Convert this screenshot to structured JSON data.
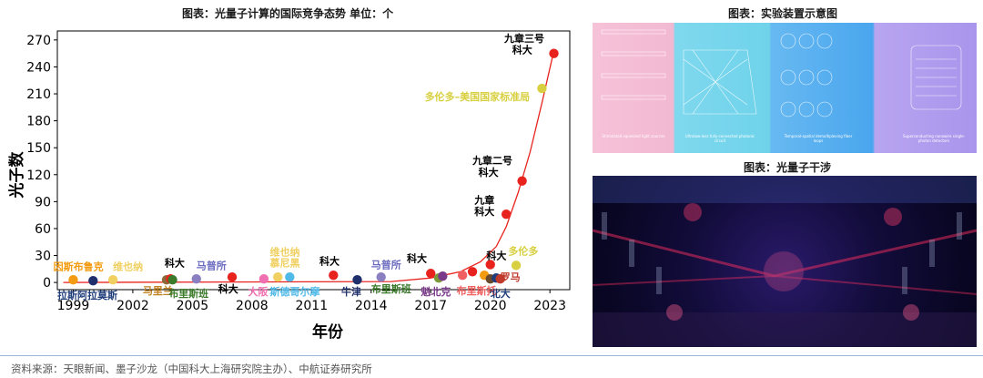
{
  "left_title": "图表：光量子计算的国际竞争态势 单位：个",
  "right_title_top": "图表：实验装置示意图",
  "right_title_bottom": "图表：光量子干涉",
  "footer": "资料来源：天眼新闻、墨子沙龙（中国科大上海研究院主办）、中航证券研究所",
  "diagram_labels": [
    "Stimulated squeezed light sources",
    "Ultralow-loss fully-connected photonic circuit",
    "Temporal-spatial demultiplexing fiber loops",
    "Superconducting nanowire single-photon detectors"
  ],
  "colors": {
    "axis": "#000000",
    "curve": "#e8231e",
    "accent_blue": "#1f3d7a"
  },
  "chart_data": {
    "type": "scatter",
    "title": "光量子计算的国际竞争态势",
    "xlabel": "年份",
    "ylabel": "光子数",
    "xlim": [
      1998.2,
      2024.0
    ],
    "ylim": [
      -8,
      280
    ],
    "xticks": [
      1999,
      2002,
      2005,
      2008,
      2011,
      2014,
      2017,
      2020,
      2023
    ],
    "yticks": [
      0,
      30,
      60,
      90,
      120,
      150,
      180,
      210,
      240,
      270
    ],
    "curve": {
      "x": [
        1998.5,
        2015,
        2017,
        2018.5,
        2019.5,
        2020.3,
        2020.8,
        2021.4,
        2022.0,
        2022.6,
        2023.2
      ],
      "y": [
        0,
        1,
        5,
        12,
        23,
        40,
        62,
        100,
        145,
        200,
        258
      ]
    },
    "points": [
      {
        "x": 1999.0,
        "y": 3,
        "color": "#f39c12"
      },
      {
        "x": 2000.0,
        "y": 2,
        "color": "#1f2f6b"
      },
      {
        "x": 2001.0,
        "y": 3,
        "color": "#f0d060"
      },
      {
        "x": 2003.7,
        "y": 3,
        "color": "#8a6a3a"
      },
      {
        "x": 2003.9,
        "y": 4,
        "color": "#e8231e"
      },
      {
        "x": 2004.0,
        "y": 3,
        "color": "#3a7a2a"
      },
      {
        "x": 2005.2,
        "y": 4,
        "color": "#8a7fc0"
      },
      {
        "x": 2007.0,
        "y": 6,
        "color": "#e8231e"
      },
      {
        "x": 2008.6,
        "y": 4,
        "color": "#f06fb0"
      },
      {
        "x": 2009.3,
        "y": 6,
        "color": "#f0d060"
      },
      {
        "x": 2009.9,
        "y": 6,
        "color": "#4fb9e8"
      },
      {
        "x": 2012.1,
        "y": 8,
        "color": "#e8231e"
      },
      {
        "x": 2013.3,
        "y": 3,
        "color": "#1f2f6b"
      },
      {
        "x": 2014.5,
        "y": 6,
        "color": "#8a7fc0"
      },
      {
        "x": 2017.0,
        "y": 10,
        "color": "#e8231e"
      },
      {
        "x": 2017.4,
        "y": 5,
        "color": "#7a9a3a"
      },
      {
        "x": 2017.6,
        "y": 7,
        "color": "#7a3a8a"
      },
      {
        "x": 2018.6,
        "y": 8,
        "color": "#f06060"
      },
      {
        "x": 2019.1,
        "y": 12,
        "color": "#e8231e"
      },
      {
        "x": 2019.7,
        "y": 8,
        "color": "#f39c12"
      },
      {
        "x": 2020.0,
        "y": 20,
        "color": "#e8231e"
      },
      {
        "x": 2020.0,
        "y": 4,
        "color": "#6a4a2a"
      },
      {
        "x": 2020.3,
        "y": 5,
        "color": "#1f3d7a"
      },
      {
        "x": 2020.5,
        "y": 4,
        "color": "#c0392b"
      },
      {
        "x": 2021.3,
        "y": 19,
        "color": "#d8d040"
      },
      {
        "x": 2020.8,
        "y": 76,
        "color": "#e8231e"
      },
      {
        "x": 2021.6,
        "y": 113,
        "color": "#e8231e"
      },
      {
        "x": 2022.6,
        "y": 216,
        "color": "#d8d040"
      },
      {
        "x": 2023.2,
        "y": 255,
        "color": "#e8231e"
      }
    ],
    "annotations": [
      {
        "text": "因斯布鲁克",
        "x": 1998.0,
        "y": 14,
        "color": "#f39c12"
      },
      {
        "text": "维也纳",
        "x": 2001.0,
        "y": 14,
        "color": "#f0d060"
      },
      {
        "text": "拉斯阿拉莫斯",
        "x": 1998.2,
        "y": -18,
        "color": "#1f3d7a"
      },
      {
        "text": "科大",
        "x": 2003.6,
        "y": 18,
        "color": "#000000"
      },
      {
        "text": "马里兰",
        "x": 2002.5,
        "y": -13,
        "color": "#c08020"
      },
      {
        "text": "布里斯班",
        "x": 2003.8,
        "y": -16,
        "color": "#3a7a2a"
      },
      {
        "text": "马普所",
        "x": 2005.2,
        "y": 15,
        "color": "#6a6ac0"
      },
      {
        "text": "科大",
        "x": 2006.3,
        "y": -11,
        "color": "#000000"
      },
      {
        "text": "大阪",
        "x": 2007.8,
        "y": -14,
        "color": "#f06fb0"
      },
      {
        "text": "维也纳",
        "x": 2008.9,
        "y": 30,
        "color": "#f0d060"
      },
      {
        "text": "慕尼黑",
        "x": 2008.9,
        "y": 18,
        "color": "#f0d060"
      },
      {
        "text": "斯德哥尔摩",
        "x": 2008.9,
        "y": -14,
        "color": "#4fb9e8"
      },
      {
        "text": "科大",
        "x": 2011.4,
        "y": 20,
        "color": "#000000"
      },
      {
        "text": "牛津",
        "x": 2012.5,
        "y": -14,
        "color": "#1f2f6b"
      },
      {
        "text": "马普所",
        "x": 2014.0,
        "y": 16,
        "color": "#6a6ac0"
      },
      {
        "text": "科大",
        "x": 2015.8,
        "y": 23,
        "color": "#000000"
      },
      {
        "text": "布里斯班",
        "x": 2014.0,
        "y": -11,
        "color": "#3a7a2a"
      },
      {
        "text": "魁北克",
        "x": 2016.5,
        "y": -14,
        "color": "#7a3a8a"
      },
      {
        "text": "布里斯托",
        "x": 2018.3,
        "y": -13,
        "color": "#f06060"
      },
      {
        "text": "科大",
        "x": 2019.8,
        "y": 26,
        "color": "#000000"
      },
      {
        "text": "多伦多",
        "x": 2020.9,
        "y": 31,
        "color": "#d8d040"
      },
      {
        "text": "罗马",
        "x": 2020.5,
        "y": 2,
        "color": "#c0392b"
      },
      {
        "text": "北大",
        "x": 2020.0,
        "y": -16,
        "color": "#1f3d7a"
      },
      {
        "text": "九章",
        "x": 2019.2,
        "y": 88,
        "color": "#000000"
      },
      {
        "text": "科大",
        "x": 2019.2,
        "y": 75,
        "color": "#000000"
      },
      {
        "text": "九章二号",
        "x": 2019.1,
        "y": 132,
        "color": "#000000"
      },
      {
        "text": "科大",
        "x": 2019.4,
        "y": 119,
        "color": "#000000"
      },
      {
        "text": "多伦多–美国国家标准局",
        "x": 2016.7,
        "y": 203,
        "color": "#d8d040"
      },
      {
        "text": "九章三号",
        "x": 2020.7,
        "y": 268,
        "color": "#000000"
      },
      {
        "text": "科大",
        "x": 2021.1,
        "y": 255,
        "color": "#000000"
      }
    ]
  }
}
